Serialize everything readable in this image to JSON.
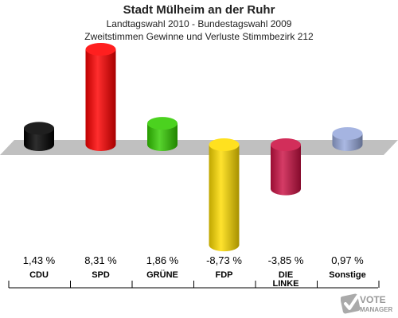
{
  "titles": {
    "line1": "Stadt Mülheim an der Ruhr",
    "line2": "Landtagswahl 2010 - Bundestagswahl 2009",
    "line3": "Zweitstimmen Gewinne und Verluste Stimmbezirk 212"
  },
  "chart_data": {
    "type": "bar",
    "title": "Stadt Mülheim an der Ruhr",
    "subtitle": "Landtagswahl 2010 - Bundestagswahl 2009 / Zweitstimmen Gewinne und Verluste Stimmbezirk 212",
    "categories": [
      "CDU",
      "SPD",
      "GRÜNE",
      "FDP",
      "DIE LINKE",
      "Sonstige"
    ],
    "category_lines": [
      [
        "CDU"
      ],
      [
        "SPD"
      ],
      [
        "GRÜNE"
      ],
      [
        "FDP"
      ],
      [
        "DIE",
        "LINKE"
      ],
      [
        "Sonstige"
      ]
    ],
    "values": [
      1.43,
      8.31,
      1.86,
      -8.73,
      -3.85,
      0.97
    ],
    "value_labels": [
      "1,43 %",
      "8,31 %",
      "1,86 %",
      "-8,73 %",
      "-3,85 %",
      "0,97 %"
    ],
    "colors": [
      "#000000",
      "#ff0000",
      "#33cc00",
      "#ffdd00",
      "#cc1144",
      "#99aadd"
    ],
    "ylim": [
      -9,
      9
    ],
    "grid": false,
    "legend": "none"
  },
  "logo": {
    "text_top": "VOTE",
    "text_bottom": "MANAGER"
  }
}
